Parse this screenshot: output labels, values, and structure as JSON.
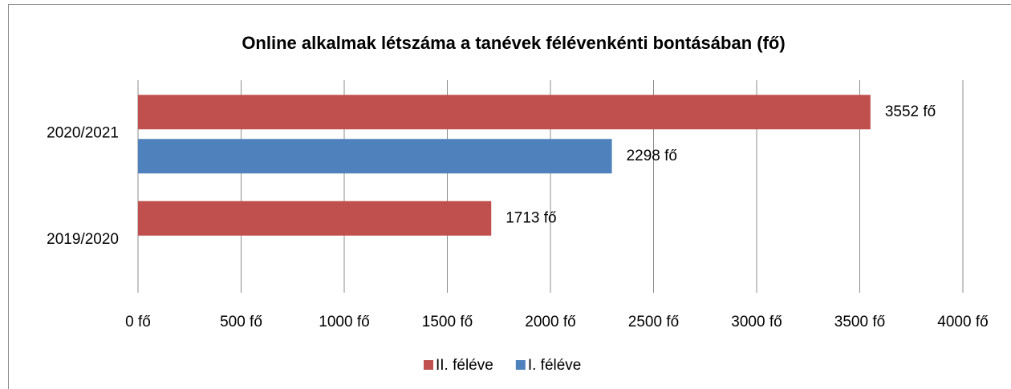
{
  "chart_data": {
    "type": "bar",
    "orientation": "horizontal",
    "title": "Online alkalmak létszáma a tanévek félévenkénti bontásában (fő)",
    "categories": [
      "2019/2020",
      "2020/2021"
    ],
    "series": [
      {
        "name": "II. féléve",
        "color": "#c0504d",
        "values": [
          1713,
          3552
        ],
        "value_labels": [
          "1713 fő",
          "3552 fő"
        ]
      },
      {
        "name": "I. féléve",
        "color": "#4f81bd",
        "values": [
          null,
          2298
        ],
        "value_labels": [
          null,
          "2298 fő"
        ]
      }
    ],
    "xlim": [
      0,
      4000
    ],
    "xticks": [
      {
        "value": 0,
        "label": "0 fő"
      },
      {
        "value": 500,
        "label": "500 fő"
      },
      {
        "value": 1000,
        "label": "1000 fő"
      },
      {
        "value": 1500,
        "label": "1500 fő"
      },
      {
        "value": 2000,
        "label": "2000 fő"
      },
      {
        "value": 2500,
        "label": "2500 fő"
      },
      {
        "value": 3000,
        "label": "3000 fő"
      },
      {
        "value": 3500,
        "label": "3500 fő"
      },
      {
        "value": 4000,
        "label": "4000 fő"
      }
    ],
    "grid": true,
    "legend": "bottom"
  }
}
